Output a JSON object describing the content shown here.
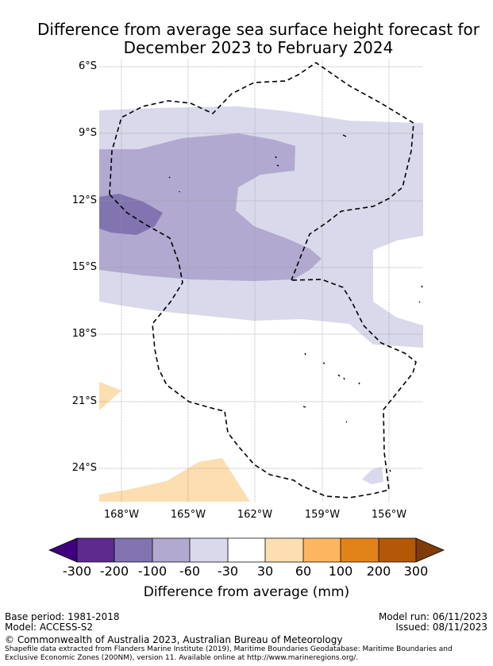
{
  "title": {
    "line1": "Difference from average sea surface height forecast for",
    "line2": "December 2023 to February 2024"
  },
  "map": {
    "lat_labels": [
      "6°S",
      "9°S",
      "12°S",
      "15°S",
      "18°S",
      "21°S",
      "24°S"
    ],
    "lon_labels": [
      "168°W",
      "165°W",
      "162°W",
      "159°W",
      "156°W"
    ],
    "colors": {
      "c_m300": "#3f007d",
      "c_m200": "#5e2a8e",
      "c_m100": "#8274b0",
      "c_m60": "#b1a9d0",
      "c_m30": "#d9d9eb",
      "c_0": "#ffffff",
      "c_30": "#fddeb0",
      "c_60": "#fdb660",
      "c_100": "#e2831a",
      "c_200": "#b35807",
      "c_300": "#7f3b08"
    }
  },
  "colorbar": {
    "ticks": [
      "-300",
      "-200",
      "-100",
      "-60",
      "-30",
      "30",
      "60",
      "100",
      "200",
      "300"
    ],
    "label": "Difference from average (mm)"
  },
  "footer": {
    "base_period": "Base period: 1981-2018",
    "model": "Model: ACCESS-S2",
    "model_run": "Model run: 06/11/2023",
    "issued": "Issued: 08/11/2023",
    "copyright": "© Commonwealth of Australia 2023, Australian Bureau of Meteorology",
    "shapefile_line1": "Shapefile data extracted from Flanders Marine Institute (2019), Maritime Boundaries Geodatabase: Maritime Boundaries and",
    "shapefile_line2": "Exclusive Economic Zones (200NM), version 11. Available online at http://www.marineregions.org/."
  }
}
